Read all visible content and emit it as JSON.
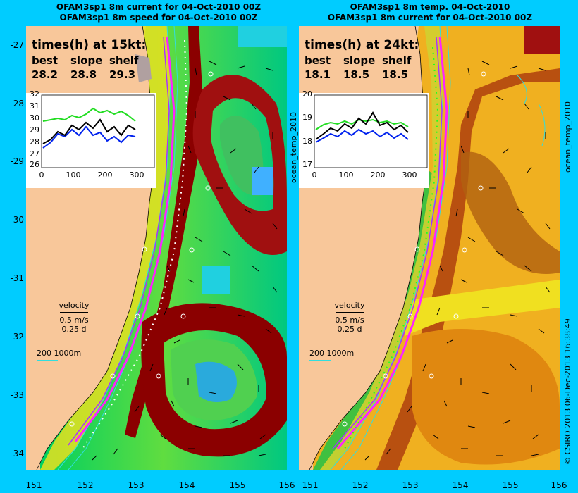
{
  "left": {
    "title_line1": "OFAM3sp1 8m current for 04-Oct-2010 00Z",
    "title_line2": "OFAM3sp1 8m speed for 04-Oct-2010 00Z",
    "times_heading": "times(h) at 15kt:",
    "col_labels": [
      "best",
      "slope",
      "shelf"
    ],
    "col_values": [
      "28.2",
      "28.8",
      "29.3"
    ],
    "inset_yticks": [
      "32",
      "31",
      "30",
      "29",
      "28",
      "27",
      "26"
    ],
    "inset_xticks": [
      "0",
      "100",
      "200",
      "300"
    ],
    "side_label": "ocean_temp_2010"
  },
  "right": {
    "title_line1": "OFAM3sp1 8m temp. 04-Oct-2010",
    "title_line2": "OFAM3sp1 8m current for 04-Oct-2010 00Z",
    "times_heading": "times(h) at 24kt:",
    "col_labels": [
      "best",
      "slope",
      "shelf"
    ],
    "col_values": [
      "18.1",
      "18.5",
      "18.5"
    ],
    "inset_yticks": [
      "20",
      "19",
      "18",
      "17"
    ],
    "inset_xticks": [
      "0",
      "100",
      "200",
      "300"
    ],
    "side_label": "ocean_temp_2010",
    "credit": "© CSIRO 2013   06-Dec-2013 16:38:49"
  },
  "velocity": {
    "label": "velocity",
    "speed": "0.5 m/s",
    "duration": "0.25 d"
  },
  "isobaths": "200  1000m",
  "lat_ticks": [
    "-27",
    "-28",
    "-29",
    "-30",
    "-31",
    "-32",
    "-33",
    "-34"
  ],
  "lon_ticks": [
    "151",
    "152",
    "153",
    "154",
    "155",
    "156"
  ],
  "colors": {
    "background": "#00ccff",
    "land": "#f8c79a",
    "route": "#ff22ff",
    "isobath": "#33dddd"
  }
}
